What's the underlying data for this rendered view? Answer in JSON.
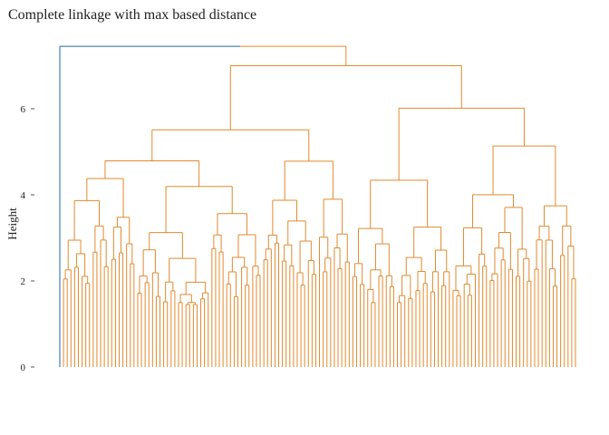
{
  "chart_data": {
    "type": "dendrogram",
    "title": "Complete linkage with max based distance",
    "ylabel": "Height",
    "xlabel": "",
    "ylim": [
      0,
      7.5
    ],
    "y_ticks": [
      {
        "value": 0,
        "label": "0"
      },
      {
        "value": 2,
        "label": "2"
      },
      {
        "value": 4,
        "label": "4"
      },
      {
        "value": 6,
        "label": "6"
      }
    ],
    "grid": false,
    "leaf_count": 140,
    "colors": {
      "cluster_1": "#2166ac",
      "cluster_2": "#e08a2e"
    },
    "root_height": 7.45,
    "clusters": [
      {
        "color": "cluster_1",
        "leaves": 1,
        "height": 0
      },
      {
        "color": "cluster_2",
        "leaves": 139,
        "height": 7.0
      }
    ],
    "notable_merge_heights": [
      7.45,
      7.0,
      6.55,
      6.3,
      5.8,
      5.7,
      5.5,
      5.3,
      5.25,
      5.05,
      4.7,
      4.65,
      4.5,
      4.1,
      3.9,
      3.6,
      3.3,
      3.05,
      2.75,
      1.8
    ]
  }
}
